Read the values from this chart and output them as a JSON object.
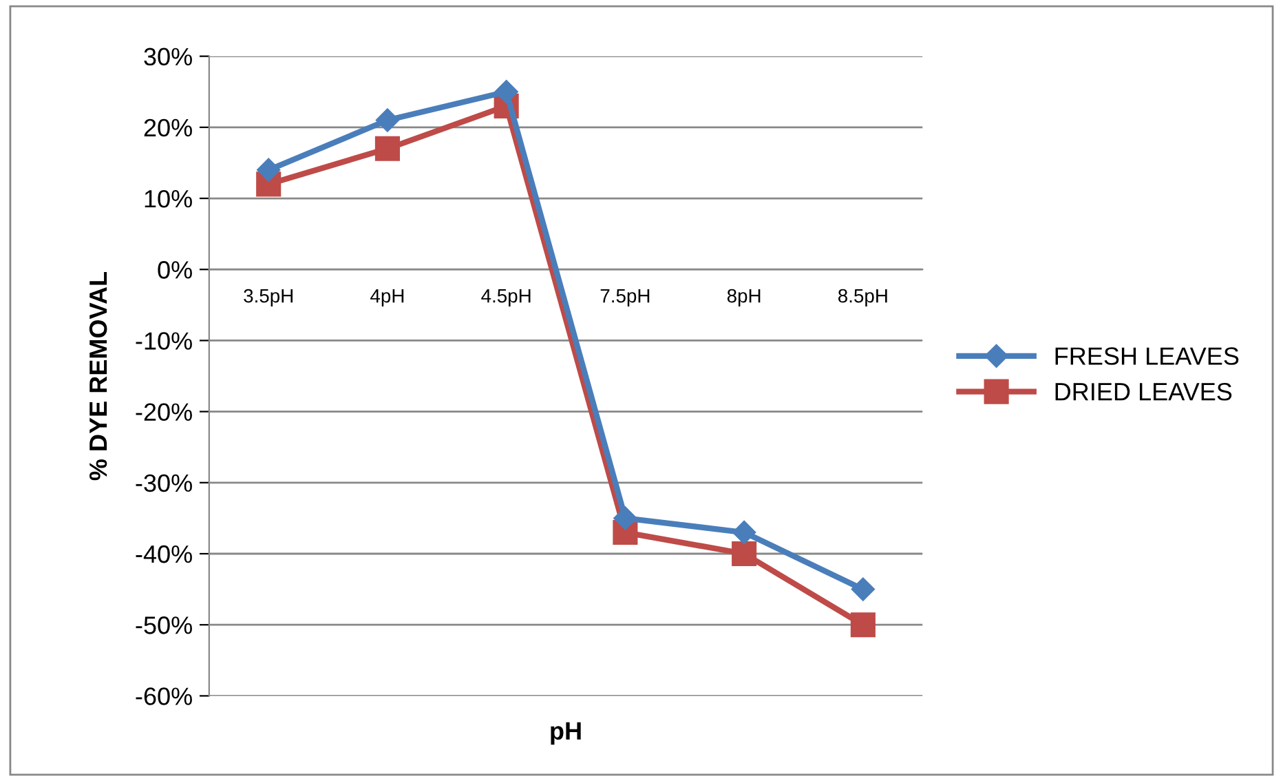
{
  "chart_data": {
    "type": "line",
    "xlabel": "pH",
    "ylabel": "% DYE REMOVAL",
    "categories": [
      "3.5pH",
      "4pH",
      "4.5pH",
      "7.5pH",
      "8pH",
      "8.5pH"
    ],
    "series": [
      {
        "name": "FRESH LEAVES",
        "color": "#4a7ebb",
        "marker": "diamond",
        "values": [
          14,
          21,
          25,
          -35,
          -37,
          -45
        ]
      },
      {
        "name": "DRIED LEAVES",
        "color": "#be4b48",
        "marker": "square",
        "values": [
          12,
          17,
          23,
          -37,
          -40,
          -50
        ]
      }
    ],
    "ylim": [
      -60,
      30
    ],
    "yticks": [
      {
        "value": -60,
        "label": "-60%"
      },
      {
        "value": -50,
        "label": "-50%"
      },
      {
        "value": -40,
        "label": "-40%"
      },
      {
        "value": -30,
        "label": "-30%"
      },
      {
        "value": -20,
        "label": "-20%"
      },
      {
        "value": -10,
        "label": "-10%"
      },
      {
        "value": 0,
        "label": "0%"
      },
      {
        "value": 10,
        "label": "10%"
      },
      {
        "value": 20,
        "label": "20%"
      },
      {
        "value": 30,
        "label": "30%"
      }
    ],
    "grid": "y",
    "legend": "right",
    "line_style": "solid"
  }
}
